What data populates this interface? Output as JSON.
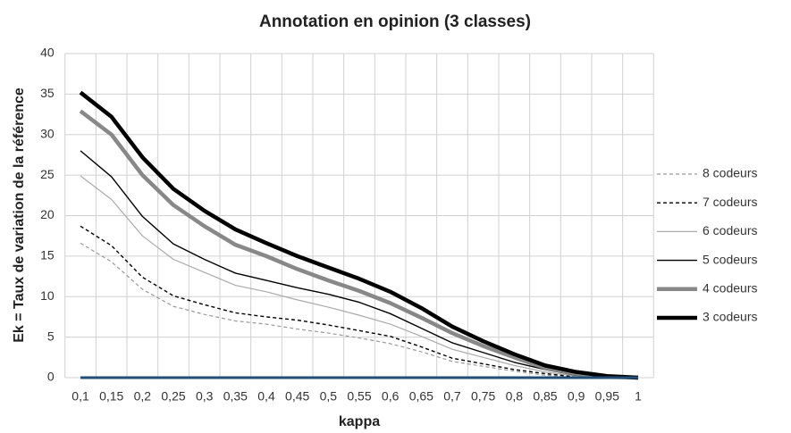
{
  "chart_data": {
    "type": "line",
    "title": "Annotation en opinion (3 classes)",
    "x_label": "kappa",
    "y_label": "Ek = Taux de variation de la référence",
    "categories": [
      "0,1",
      "0,15",
      "0,2",
      "0,25",
      "0,3",
      "0,35",
      "0,4",
      "0,45",
      "0,5",
      "0,55",
      "0,6",
      "0,65",
      "0,7",
      "0,75",
      "0,8",
      "0,85",
      "0,9",
      "0,95",
      "1"
    ],
    "ylim": [
      0,
      40
    ],
    "yticks": [
      0,
      5,
      10,
      15,
      20,
      25,
      30,
      35,
      40
    ],
    "grid": true,
    "legend": "right",
    "series": [
      {
        "name": "8 codeurs",
        "color": "#999999",
        "line_width": 1.2,
        "dashed": true,
        "values": [
          16.6,
          14.3,
          10.9,
          8.8,
          7.8,
          7.0,
          6.6,
          6.0,
          5.5,
          4.9,
          4.2,
          3.2,
          2.0,
          1.4,
          0.8,
          0.3,
          0.1,
          0,
          0
        ]
      },
      {
        "name": "7 codeurs",
        "color": "#000000",
        "line_width": 1.4,
        "dashed": true,
        "values": [
          18.7,
          16.3,
          12.4,
          10.1,
          9.0,
          8.0,
          7.5,
          7.1,
          6.5,
          5.8,
          5.1,
          3.8,
          2.4,
          1.7,
          1.0,
          0.5,
          0.1,
          0,
          0
        ]
      },
      {
        "name": "6 codeurs",
        "color": "#aaaaaa",
        "line_width": 1.2,
        "dashed": false,
        "values": [
          24.9,
          22.0,
          17.5,
          14.6,
          13.0,
          11.4,
          10.6,
          9.6,
          8.7,
          7.7,
          6.6,
          5.1,
          3.5,
          2.5,
          1.5,
          0.7,
          0.2,
          0,
          0
        ]
      },
      {
        "name": "5 codeurs",
        "color": "#000000",
        "line_width": 1.4,
        "dashed": false,
        "values": [
          28.0,
          24.8,
          19.9,
          16.5,
          14.6,
          12.9,
          12.0,
          11.1,
          10.3,
          9.3,
          7.9,
          6.1,
          4.3,
          3.1,
          1.9,
          1.0,
          0.3,
          0.1,
          0
        ]
      },
      {
        "name": "4 codeurs",
        "color": "#888888",
        "line_width": 4.5,
        "dashed": false,
        "values": [
          32.9,
          30.0,
          25.0,
          21.3,
          18.7,
          16.4,
          15.0,
          13.4,
          12.0,
          10.7,
          9.2,
          7.4,
          5.5,
          3.9,
          2.5,
          1.2,
          0.5,
          0.1,
          0
        ]
      },
      {
        "name": "3 codeurs",
        "color": "#000000",
        "line_width": 4.5,
        "dashed": false,
        "values": [
          35.2,
          32.2,
          27.2,
          23.3,
          20.6,
          18.3,
          16.6,
          15.0,
          13.6,
          12.2,
          10.6,
          8.6,
          6.3,
          4.5,
          2.9,
          1.5,
          0.7,
          0.2,
          0
        ]
      }
    ]
  }
}
